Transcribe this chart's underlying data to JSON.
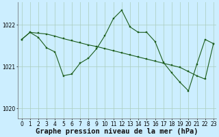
{
  "background_color": "#cceeff",
  "grid_color": "#aaccbb",
  "line_color": "#1a5c1a",
  "marker_color": "#1a5c1a",
  "xlabel": "Graphe pression niveau de la mer (hPa)",
  "xlabel_fontsize": 7.5,
  "xlim": [
    -0.5,
    23.3
  ],
  "ylim": [
    1019.75,
    1022.55
  ],
  "yticks": [
    1020,
    1021,
    1022
  ],
  "xticks": [
    0,
    1,
    2,
    3,
    4,
    5,
    6,
    7,
    8,
    9,
    10,
    11,
    12,
    13,
    14,
    15,
    16,
    17,
    18,
    19,
    20,
    21,
    22,
    23
  ],
  "series1_x": [
    0,
    1,
    2,
    3,
    4,
    5,
    6,
    7,
    8,
    9,
    10,
    11,
    12,
    13,
    14,
    15,
    16,
    17,
    18,
    19,
    20,
    21,
    22,
    23
  ],
  "series1_y": [
    1021.65,
    1021.82,
    1021.8,
    1021.78,
    1021.73,
    1021.67,
    1021.62,
    1021.57,
    1021.52,
    1021.48,
    1021.43,
    1021.38,
    1021.33,
    1021.28,
    1021.23,
    1021.18,
    1021.13,
    1021.08,
    1021.03,
    1020.98,
    1020.88,
    1020.78,
    1020.7,
    1021.55
  ],
  "series2_x": [
    0,
    1,
    2,
    3,
    4,
    5,
    6,
    7,
    8,
    9,
    10,
    11,
    12,
    13,
    14,
    15,
    16,
    17,
    18,
    19,
    20,
    21,
    22,
    23
  ],
  "series2_y": [
    1021.65,
    1021.82,
    1021.7,
    1021.45,
    1021.35,
    1020.78,
    1020.82,
    1021.08,
    1021.2,
    1021.43,
    1021.75,
    1022.15,
    1022.35,
    1021.95,
    1021.82,
    1021.82,
    1021.6,
    1021.1,
    1020.85,
    1020.62,
    1020.42,
    1021.05,
    1021.65,
    1021.55
  ],
  "tick_fontsize": 5.5,
  "marker_size": 2.0,
  "linewidth": 0.8
}
